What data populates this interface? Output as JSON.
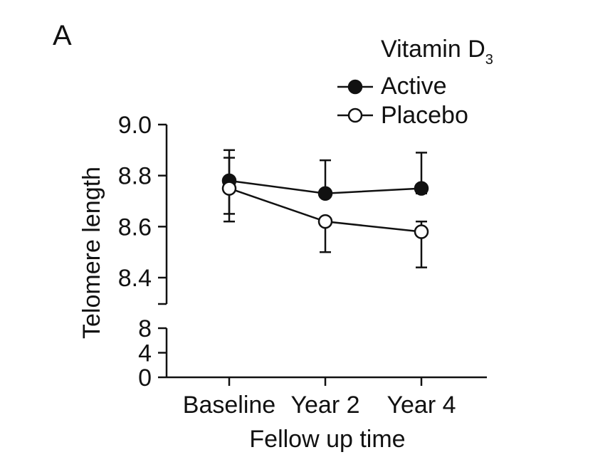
{
  "panel_label": "A",
  "chart_data": {
    "type": "line",
    "title": "",
    "xlabel": "Fellow up time",
    "ylabel": "Telomere length",
    "categories": [
      "Baseline",
      "Year 2",
      "Year 4"
    ],
    "ylim_upper": [
      8.3,
      9.0
    ],
    "yticks_upper": [
      "9.0",
      "8.8",
      "8.6",
      "8.4"
    ],
    "yticks_upper_values": [
      9.0,
      8.8,
      8.6,
      8.4
    ],
    "ylim_lower": [
      0,
      8
    ],
    "yticks_lower": [
      "8",
      "4",
      "0"
    ],
    "yticks_lower_values": [
      8,
      4,
      0
    ],
    "axis_break": true,
    "grid": false,
    "legend_title": "Vitamin D",
    "legend_title_subscript": "3",
    "legend_placement": "top-right",
    "series": [
      {
        "name": "Active",
        "marker": "filled-circle",
        "color": "#111111",
        "values": [
          8.78,
          8.73,
          8.75
        ],
        "err_low": [
          8.65,
          8.73,
          8.73
        ],
        "err_high": [
          8.9,
          8.86,
          8.89
        ]
      },
      {
        "name": "Placebo",
        "marker": "open-circle",
        "color": "#111111",
        "values": [
          8.75,
          8.62,
          8.58
        ],
        "err_low": [
          8.62,
          8.5,
          8.44
        ],
        "err_high": [
          8.87,
          8.62,
          8.62
        ]
      }
    ]
  }
}
